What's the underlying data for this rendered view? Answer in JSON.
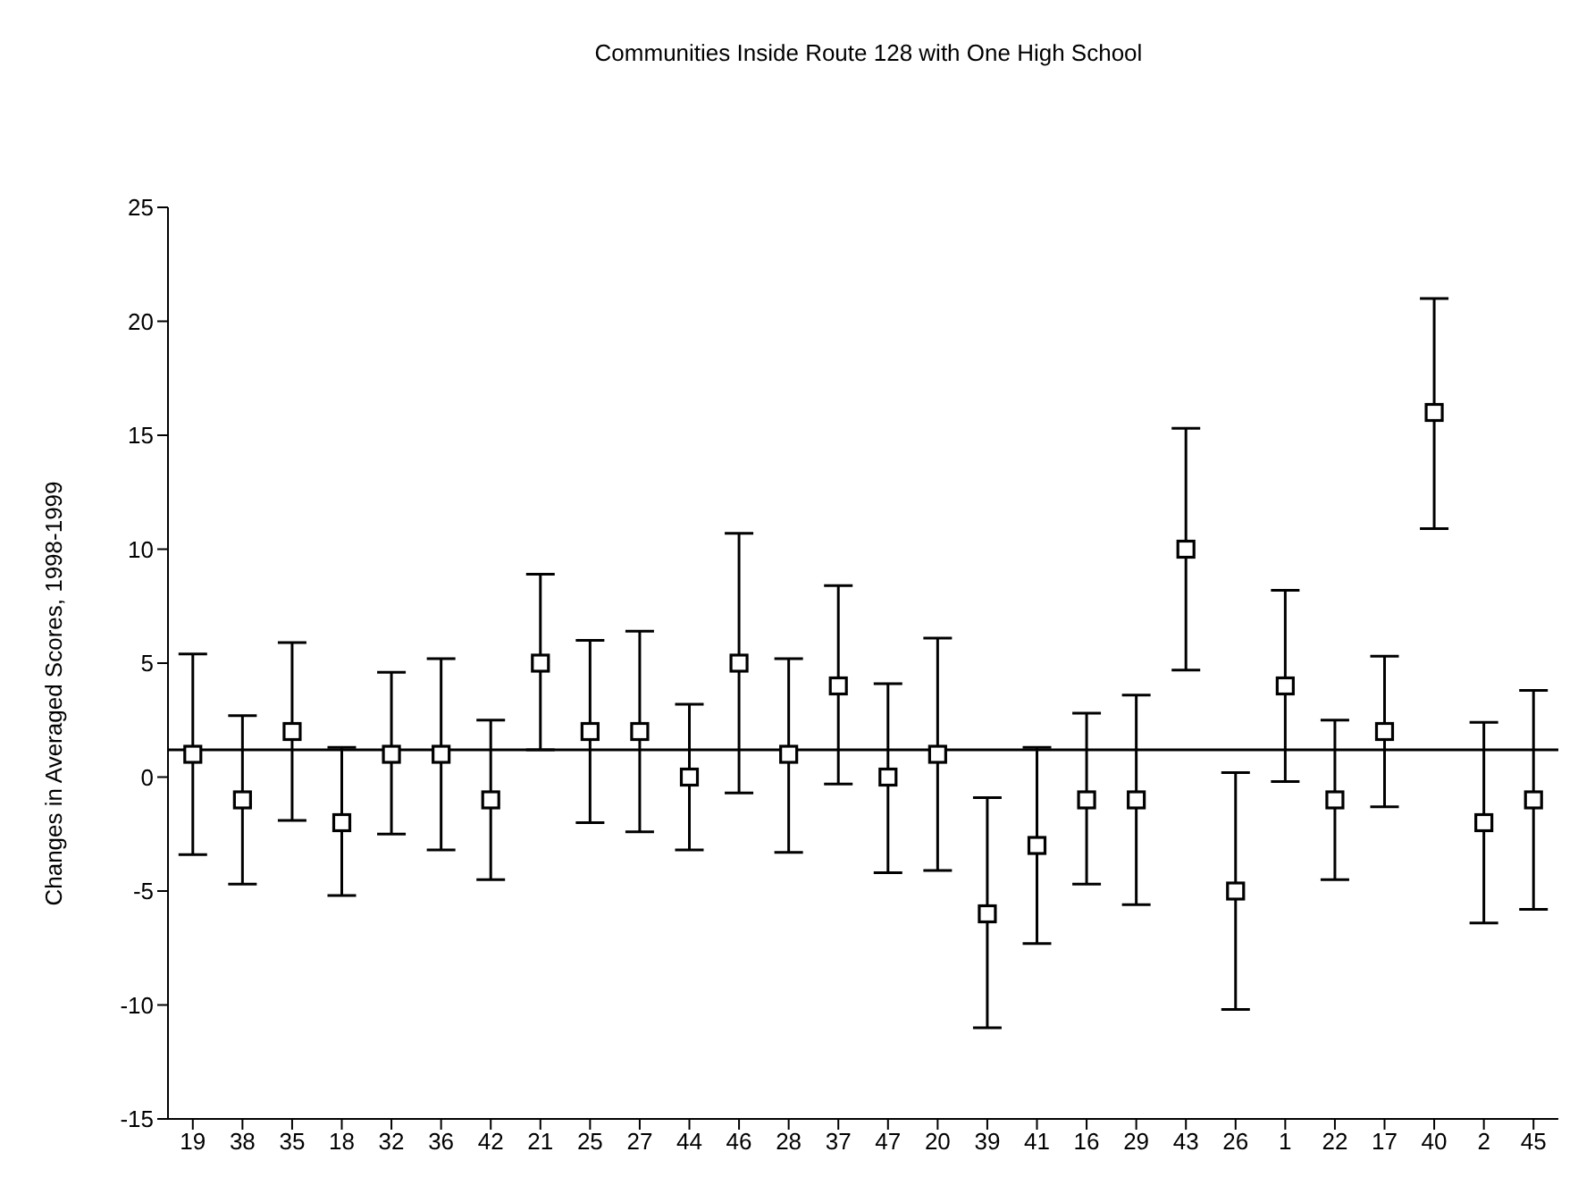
{
  "chart_data": {
    "type": "scatter",
    "title": "Communities Inside Route 128 with One High School",
    "ylabel": "Changes in Averaged Scores, 1998-1999",
    "categories": [
      "19",
      "38",
      "35",
      "18",
      "32",
      "36",
      "42",
      "21",
      "25",
      "27",
      "44",
      "46",
      "28",
      "37",
      "47",
      "20",
      "39",
      "41",
      "16",
      "29",
      "43",
      "26",
      "1",
      "22",
      "17",
      "40",
      "2",
      "45"
    ],
    "values": [
      1,
      -1,
      2,
      -2,
      1,
      1,
      -1,
      5,
      2,
      2,
      0,
      5,
      1,
      4,
      0,
      1,
      -6,
      -3,
      -1,
      -1,
      10,
      -5,
      4,
      -1,
      2,
      16,
      -2,
      -1
    ],
    "errors": [
      [
        -3.4,
        5.4
      ],
      [
        -4.7,
        2.7
      ],
      [
        -1.9,
        5.9
      ],
      [
        -5.2,
        1.3
      ],
      [
        -2.5,
        4.6
      ],
      [
        -3.2,
        5.2
      ],
      [
        -4.5,
        2.5
      ],
      [
        1.2,
        8.9
      ],
      [
        -2,
        6
      ],
      [
        -2.4,
        6.4
      ],
      [
        -3.2,
        3.2
      ],
      [
        -0.7,
        10.7
      ],
      [
        -3.3,
        5.2
      ],
      [
        -0.3,
        8.4
      ],
      [
        -4.2,
        4.1
      ],
      [
        -4.1,
        6.1
      ],
      [
        -11,
        -0.9
      ],
      [
        -7.3,
        1.3
      ],
      [
        -4.7,
        2.8
      ],
      [
        -5.6,
        3.6
      ],
      [
        4.7,
        15.3
      ],
      [
        -10.2,
        0.2
      ],
      [
        -0.2,
        8.2
      ],
      [
        -4.5,
        2.5
      ],
      [
        -1.3,
        5.3
      ],
      [
        10.9,
        21
      ],
      [
        -6.4,
        2.4
      ],
      [
        -5.8,
        3.8
      ]
    ],
    "color": "#000000",
    "marker": "square",
    "ylim": [
      -15,
      25
    ],
    "yticks": [
      -15,
      -10,
      -5,
      0,
      5,
      10,
      15,
      20,
      25
    ],
    "ref_lines": [
      {
        "axis": "y",
        "value": 1.2,
        "color": "#000000"
      }
    ]
  }
}
